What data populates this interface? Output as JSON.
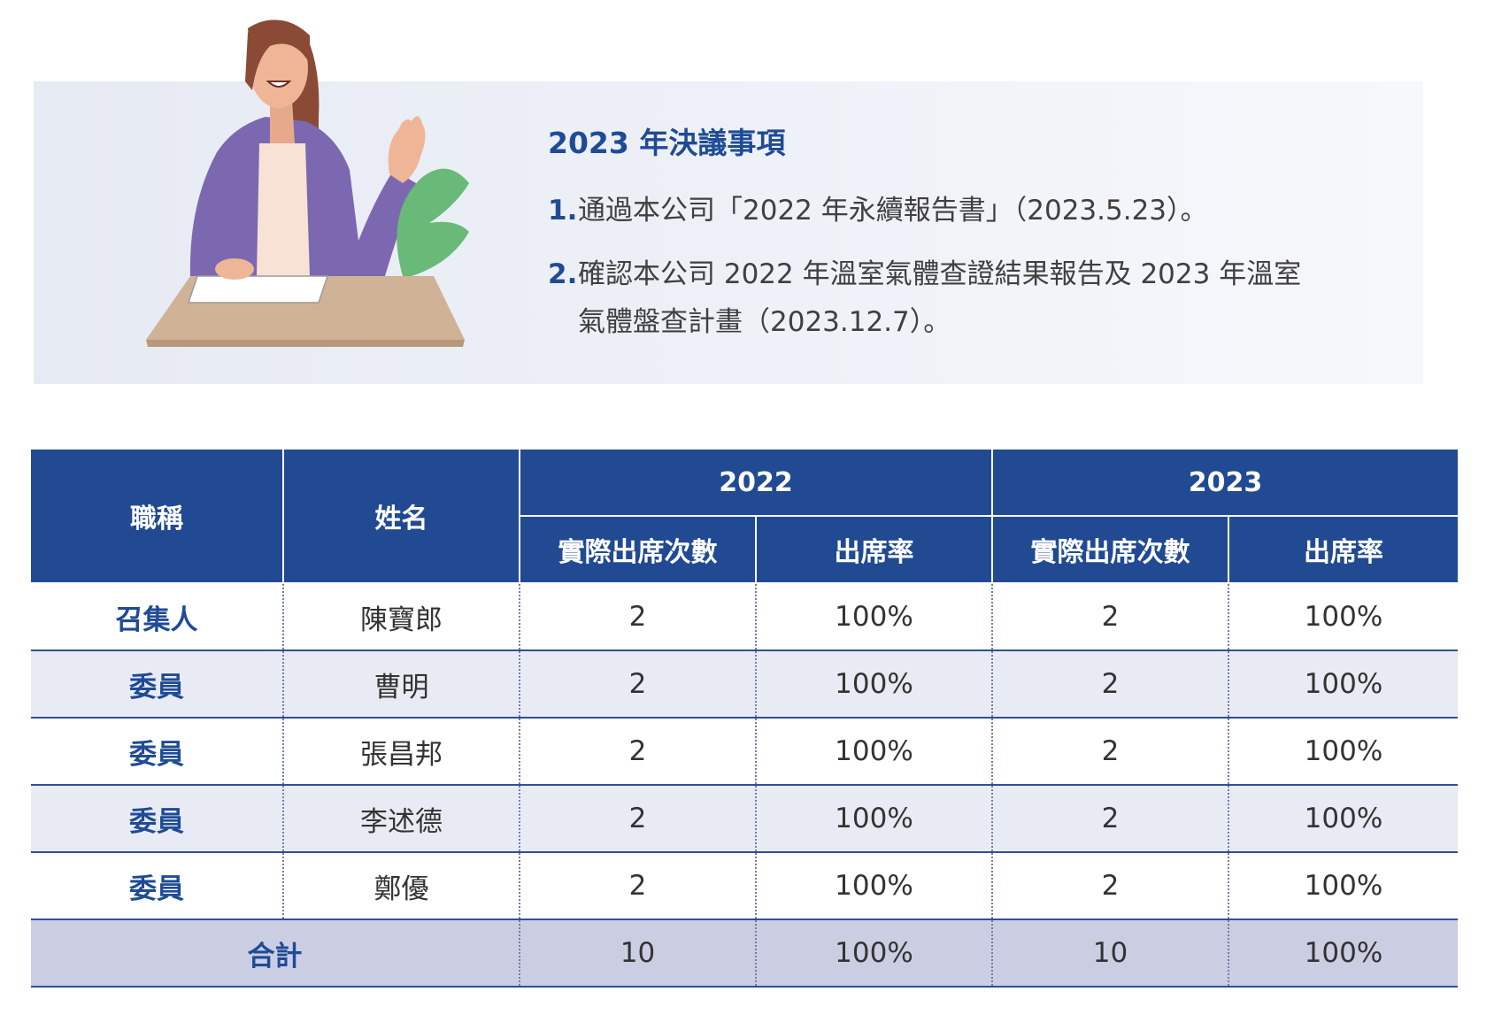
{
  "resolutions": {
    "title": "2023 年決議事項",
    "items": [
      {
        "num": "1.",
        "lines": [
          "通過本公司「2022 年永續報告書」（2023.5.23）。"
        ]
      },
      {
        "num": "2.",
        "lines": [
          "確認本公司 2022 年溫室氣體查證結果報告及 2023 年溫室",
          "氣體盤查計畫（2023.12.7）。"
        ]
      }
    ]
  },
  "table": {
    "headers": {
      "title_col": "職稱",
      "name_col": "姓名",
      "years": [
        "2022",
        "2023"
      ],
      "sub": [
        "實際出席次數",
        "出席率",
        "實際出席次數",
        "出席率"
      ]
    },
    "rows": [
      {
        "title": "召集人",
        "name": "陳寶郎",
        "c1": "2",
        "r1": "100%",
        "c2": "2",
        "r2": "100%"
      },
      {
        "title": "委員",
        "name": "曹明",
        "c1": "2",
        "r1": "100%",
        "c2": "2",
        "r2": "100%"
      },
      {
        "title": "委員",
        "name": "張昌邦",
        "c1": "2",
        "r1": "100%",
        "c2": "2",
        "r2": "100%"
      },
      {
        "title": "委員",
        "name": "李述德",
        "c1": "2",
        "r1": "100%",
        "c2": "2",
        "r2": "100%"
      },
      {
        "title": "委員",
        "name": "鄭優",
        "c1": "2",
        "r1": "100%",
        "c2": "2",
        "r2": "100%"
      }
    ],
    "total": {
      "label": "合計",
      "c1": "10",
      "r1": "100%",
      "c2": "10",
      "r2": "100%"
    }
  },
  "colors": {
    "header_bg": "#214a93",
    "accent_text": "#1f4b96",
    "alt_row": "#e9ebf4",
    "total_row": "#cbcee3",
    "banner": "#eef1f7"
  },
  "illustration": {
    "icon": "woman-at-desk-illustration"
  }
}
